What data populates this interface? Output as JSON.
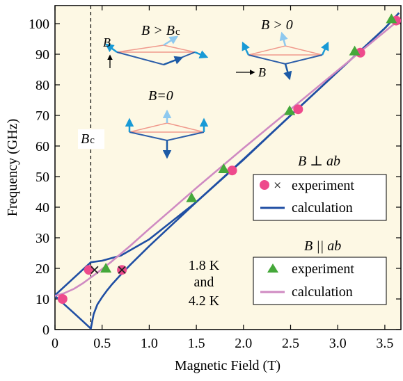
{
  "chart_data": {
    "type": "line",
    "xlabel": "Magnetic Field (T)",
    "ylabel": "Frequency (GHz)",
    "xlim": [
      0,
      3.65
    ],
    "ylim": [
      0,
      105
    ],
    "xticks": [
      0,
      0.5,
      1.0,
      1.5,
      2.0,
      2.5,
      3.0,
      3.5
    ],
    "xtick_labels": [
      "0",
      "0.5",
      "1.0",
      "1.5",
      "2.0",
      "2.5",
      "3.0",
      "3.5"
    ],
    "yticks": [
      0,
      10,
      20,
      30,
      40,
      50,
      60,
      70,
      80,
      90,
      100
    ],
    "ytick_labels": [
      "0",
      "10",
      "20",
      "30",
      "40",
      "50",
      "60",
      "70",
      "80",
      "90",
      "100"
    ],
    "grid": false,
    "background": "#fdf8e4",
    "critical_field": {
      "x": 0.38,
      "label": "B",
      "label_sub": "c"
    },
    "temperature_note": [
      "1.8 K",
      "and",
      "4.2 K"
    ],
    "series": [
      {
        "name": "B ⊥ ab experiment",
        "kind": "scatter",
        "marker": "circle",
        "color": "#ee4a8c",
        "x": [
          0.08,
          0.36,
          0.71,
          1.88,
          2.58,
          3.24,
          3.62
        ],
        "y": [
          10,
          19.5,
          19.5,
          52,
          72,
          90.5,
          101
        ]
      },
      {
        "name": "B ⊥ ab experiment (cross)",
        "kind": "scatter",
        "marker": "cross",
        "color": "#222222",
        "x": [
          0.42,
          0.71
        ],
        "y": [
          19.5,
          19.5
        ]
      },
      {
        "name": "B ⊥ ab calculation (upper)",
        "kind": "line",
        "color": "#1f4ea3",
        "x": [
          0,
          0.38,
          0.38,
          0.5,
          0.7,
          1.0,
          1.5,
          2.0,
          2.5,
          3.0,
          3.5,
          3.65
        ],
        "y": [
          11.2,
          22,
          22,
          22.5,
          24.2,
          29.5,
          41.7,
          55.5,
          70,
          84.3,
          98.5,
          103.5
        ]
      },
      {
        "name": "B ⊥ ab calculation (lower branch)",
        "kind": "line",
        "color": "#1f4ea3",
        "x": [
          0,
          0.1,
          0.2,
          0.3,
          0.38,
          0.41,
          0.45,
          0.5,
          0.55,
          0.6,
          0.7,
          0.8,
          1.0,
          1.5,
          2.0,
          2.5,
          3.0,
          3.5,
          3.65
        ],
        "y": [
          11,
          8.2,
          5.4,
          2.6,
          0.3,
          5,
          8.2,
          10.6,
          12.7,
          14.6,
          18,
          21.2,
          27.3,
          41.7,
          55.7,
          70,
          84.3,
          98.5,
          103.5
        ]
      },
      {
        "name": "B || ab experiment",
        "kind": "scatter",
        "marker": "triangle",
        "color": "#45a83a",
        "x": [
          0.54,
          1.45,
          1.79,
          2.49,
          3.18,
          3.57
        ],
        "y": [
          20,
          43,
          52.5,
          71.5,
          91,
          101.5
        ]
      },
      {
        "name": "B || ab calculation",
        "kind": "line",
        "color": "#cf8ac2",
        "x": [
          0,
          0.1,
          0.2,
          0.3,
          0.45,
          0.6,
          0.8,
          1.0,
          1.25,
          1.5,
          2.0,
          2.5,
          3.0,
          3.5,
          3.65
        ],
        "y": [
          11,
          11.9,
          13.3,
          15.2,
          18.6,
          22.2,
          27.4,
          32.9,
          39.6,
          46.3,
          59.3,
          72,
          84.7,
          97.4,
          101.2
        ]
      }
    ],
    "legends": [
      {
        "title": "B ⊥ ab",
        "entries": [
          {
            "label": "experiment",
            "symbol": "circle-cross",
            "color": "#ee4a8c"
          },
          {
            "label": "calculation",
            "symbol": "line",
            "color": "#1f4ea3"
          }
        ]
      },
      {
        "title": "B || ab",
        "entries": [
          {
            "label": "experiment",
            "symbol": "triangle",
            "color": "#45a83a"
          },
          {
            "label": "calculation",
            "symbol": "line",
            "color": "#cf8ac2"
          }
        ]
      }
    ],
    "insets": [
      {
        "id": "high-field-inset",
        "label": "B > B",
        "label_sub": "c",
        "field_arrow_label": "B"
      },
      {
        "id": "positive-field-inset",
        "label": "B > 0",
        "field_arrow_label": "B"
      },
      {
        "id": "zero-field-inset",
        "label": "B=0"
      }
    ]
  }
}
